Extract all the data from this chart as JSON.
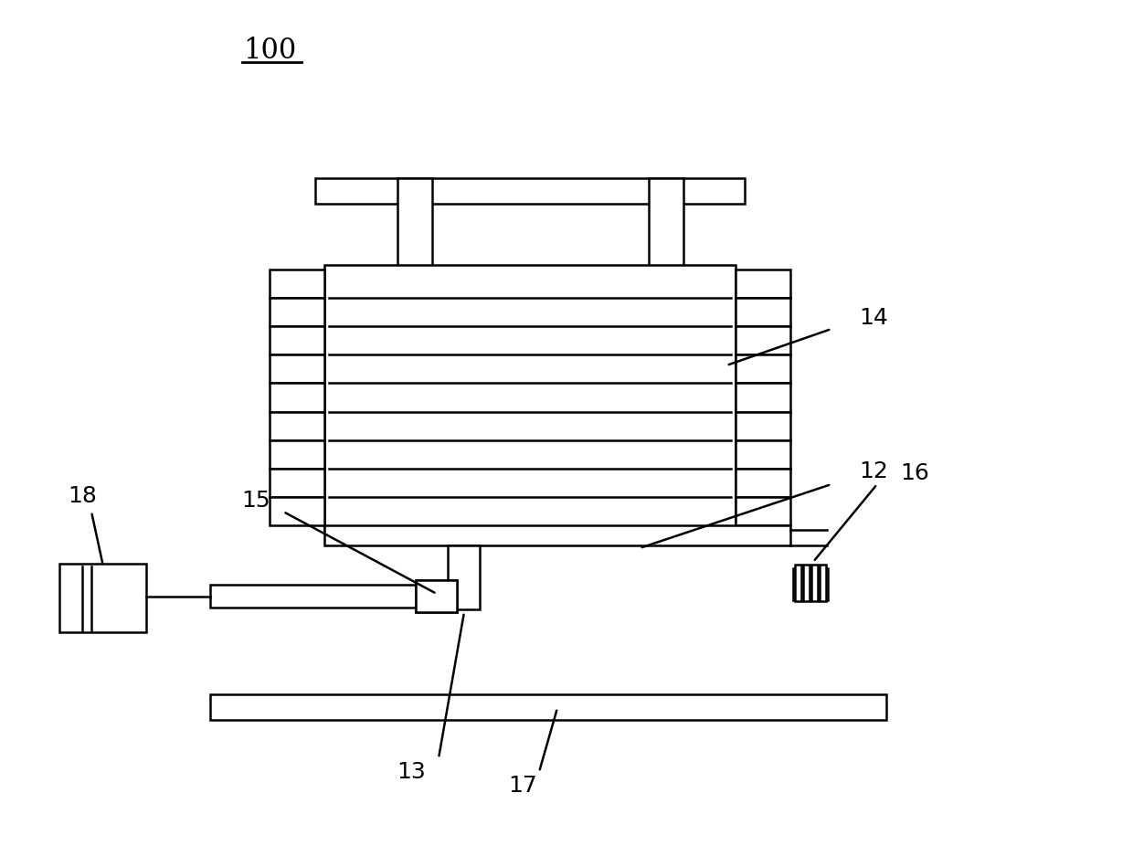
{
  "bg_color": "#ffffff",
  "line_color": "#000000",
  "line_width": 1.8,
  "label_100": "100",
  "label_12": "12",
  "label_13": "13",
  "label_14": "14",
  "label_15": "15",
  "label_16": "16",
  "label_17": "17",
  "label_18": "18",
  "font_size_100": 22,
  "font_size_labels": 18
}
